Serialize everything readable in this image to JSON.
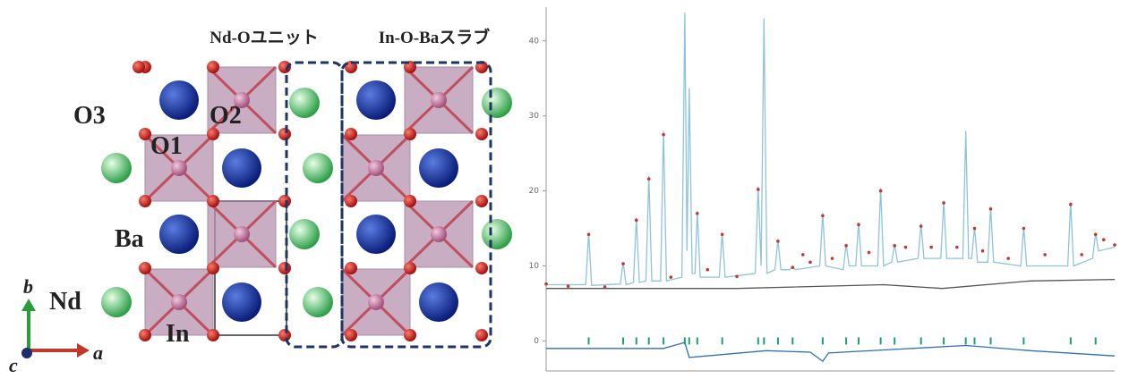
{
  "structure": {
    "unit_label": "Nd-Oユニット",
    "slab_label": "In-O-Baスラブ",
    "atoms": [
      "O3",
      "O2",
      "O1",
      "Ba",
      "Nd",
      "In"
    ],
    "axes": [
      "b",
      "a",
      "c"
    ]
  },
  "chart_data": {
    "type": "line",
    "xlim": [
      14,
      91.5
    ],
    "ylim": [
      -4,
      44.5
    ],
    "yticks": [
      0,
      10,
      20,
      30,
      40
    ],
    "series": [
      {
        "color": "#8fc3dc",
        "style": "line",
        "x": [
          14,
          19.4,
          19.8,
          20.2,
          24.1,
          24.5,
          24.9,
          25.9,
          26.3,
          26.7,
          27.6,
          28.0,
          28.4,
          29.6,
          30.0,
          30.4,
          32.5,
          32.9,
          33.2,
          33.5,
          33.9,
          34.3,
          34.6,
          35.0,
          37.6,
          38.0,
          38.4,
          42.5,
          42.9,
          43.3,
          43.7,
          44.1,
          45.2,
          45.6,
          46.0,
          47.2,
          47.6,
          48.0,
          51.3,
          51.7,
          52.1,
          54.5,
          54.9,
          55.3,
          56.2,
          56.6,
          57.0,
          59.2,
          59.6,
          60.0,
          61.1,
          61.5,
          61.9,
          64.7,
          65.1,
          65.5,
          67.8,
          68.2,
          68.6,
          70.8,
          71.2,
          71.6,
          72.0,
          72.4,
          72.8,
          74.2,
          74.6,
          75.0,
          78.7,
          79.1,
          79.5,
          85.1,
          85.5,
          85.9,
          88.5,
          88.9,
          89.3,
          91.5
        ],
        "values": [
          7.5,
          7.5,
          14.4,
          7.4,
          7.6,
          10.5,
          7.5,
          7.8,
          16.4,
          7.8,
          8,
          22,
          8,
          8,
          28,
          8,
          8.5,
          43.8,
          12,
          33.7,
          9,
          9,
          17.3,
          8.5,
          8.5,
          14.4,
          8.5,
          9,
          20.6,
          10,
          43,
          9,
          9.5,
          13.5,
          9.5,
          9.5,
          9.9,
          9.5,
          10,
          17,
          10,
          9.5,
          12.9,
          10,
          10,
          15.8,
          10,
          10,
          20.4,
          10,
          10.5,
          12.9,
          10.5,
          11,
          15.6,
          11,
          11,
          18.7,
          11,
          11,
          28,
          11,
          11,
          15.2,
          10.5,
          10.5,
          17.9,
          10.5,
          10,
          15.2,
          10,
          10,
          18.5,
          10,
          11,
          14.4,
          12,
          12.5
        ]
      },
      {
        "color": "#c0392b",
        "style": "dots",
        "x": [
          14,
          17,
          19.8,
          22,
          24.5,
          26.3,
          28.0,
          30.0,
          31,
          34.6,
          36,
          38.0,
          40,
          42.9,
          45.6,
          47.6,
          49,
          50,
          51.7,
          53,
          54.9,
          56.6,
          58,
          59.6,
          61.5,
          63,
          65.1,
          66.5,
          68.2,
          70,
          72.4,
          73.5,
          74.6,
          77,
          79.1,
          82,
          85.5,
          87,
          88.9,
          90,
          91.5
        ],
        "values": [
          7.6,
          7.3,
          14.2,
          7.2,
          10.3,
          16.1,
          21.6,
          27.5,
          8.5,
          17,
          9.5,
          14.2,
          8.6,
          20.2,
          13.3,
          9.8,
          11.5,
          10.5,
          16.7,
          11,
          12.7,
          15.5,
          11.8,
          20,
          12.7,
          12.5,
          15.3,
          12.5,
          18.4,
          12.5,
          15,
          12,
          17.6,
          11,
          15,
          11.5,
          18.2,
          11.5,
          14.2,
          13.5,
          12.8
        ]
      },
      {
        "color": "#555555",
        "style": "line",
        "x": [
          14,
          40,
          60,
          68,
          80,
          91.5
        ],
        "values": [
          7,
          7,
          7.5,
          7,
          8,
          8.2
        ]
      },
      {
        "color": "#2e6fb5",
        "style": "line",
        "x": [
          14,
          30,
          32.9,
          33.5,
          44,
          50,
          51.7,
          52.5,
          71.2,
          80,
          91.5
        ],
        "values": [
          -1,
          -1,
          -0.2,
          -2.2,
          -1.3,
          -1.5,
          -2.7,
          -1.6,
          -0.6,
          -1.3,
          -2
        ]
      },
      {
        "color": "#1fa06a",
        "style": "ticks",
        "x": [
          19.8,
          24.5,
          26.3,
          28.0,
          30.0,
          32.9,
          33.5,
          34.6,
          38.0,
          42.9,
          43.7,
          45.6,
          47.6,
          51.7,
          54.9,
          56.6,
          59.6,
          61.5,
          65.1,
          68.2,
          71.2,
          72.4,
          74.6,
          79.1,
          85.5,
          88.9
        ],
        "values": [
          0,
          0,
          0,
          0,
          0,
          0,
          0,
          0,
          0,
          0,
          0,
          0,
          0,
          0,
          0,
          0,
          0,
          0,
          0,
          0,
          0,
          0,
          0,
          0,
          0,
          0
        ]
      }
    ]
  }
}
